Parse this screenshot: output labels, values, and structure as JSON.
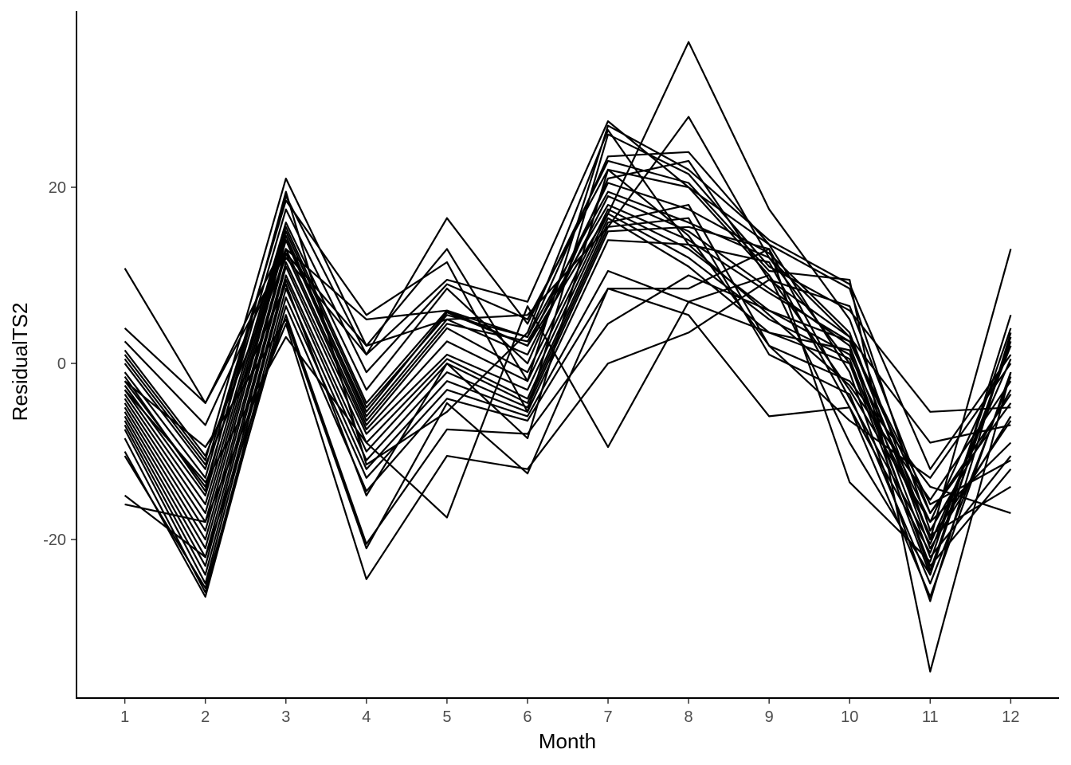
{
  "chart_data": {
    "type": "line",
    "title": "",
    "xlabel": "Month",
    "ylabel": "ResidualTS2",
    "x": [
      1,
      2,
      3,
      4,
      5,
      6,
      7,
      8,
      9,
      10,
      11,
      12
    ],
    "x_tick_labels": [
      "1",
      "2",
      "3",
      "4",
      "5",
      "6",
      "7",
      "8",
      "9",
      "10",
      "11",
      "12"
    ],
    "y_ticks": [
      20,
      0,
      -20
    ],
    "y_tick_labels": [
      "20",
      "0",
      "-20"
    ],
    "xlim": [
      0.4,
      12.6
    ],
    "ylim": [
      -38,
      40
    ],
    "grid": false,
    "legend": "none",
    "line_color": "#000000",
    "series": [
      {
        "values": [
          10.8,
          -4.5,
          14.0,
          -5.5,
          5.8,
          2.0,
          17.0,
          36.5,
          17.5,
          5.0,
          -20.0,
          13.0
        ]
      },
      {
        "values": [
          4.0,
          -4.5,
          12.5,
          2.0,
          5.0,
          5.5,
          15.5,
          28.0,
          12.0,
          0.0,
          -24.0,
          5.5
        ]
      },
      {
        "values": [
          2.5,
          -7.0,
          13.0,
          5.0,
          6.0,
          3.0,
          23.5,
          24.0,
          13.5,
          -1.0,
          -27.0,
          3.5
        ]
      },
      {
        "values": [
          1.5,
          -10.5,
          12.0,
          1.0,
          9.5,
          7.0,
          27.5,
          20.0,
          10.0,
          -3.0,
          -18.0,
          2.0
        ]
      },
      {
        "values": [
          1.0,
          -11.0,
          21.0,
          2.0,
          13.0,
          -2.0,
          27.0,
          22.0,
          14.0,
          9.0,
          -12.0,
          1.0
        ]
      },
      {
        "values": [
          0.0,
          -12.0,
          18.5,
          5.5,
          11.5,
          -5.5,
          26.0,
          21.5,
          11.0,
          6.0,
          -5.5,
          -5.0
        ]
      },
      {
        "values": [
          -1.0,
          -13.0,
          19.0,
          1.0,
          16.5,
          4.5,
          23.0,
          20.5,
          10.5,
          9.5,
          -35.0,
          -1.0
        ]
      },
      {
        "values": [
          -2.0,
          -14.0,
          17.5,
          -1.0,
          9.0,
          5.0,
          22.0,
          20.0,
          13.5,
          8.5,
          -19.0,
          -3.0
        ]
      },
      {
        "values": [
          -2.5,
          -15.0,
          16.0,
          -3.0,
          8.5,
          0.0,
          21.0,
          23.0,
          9.5,
          6.5,
          -17.0,
          -4.5
        ]
      },
      {
        "values": [
          -3.0,
          -16.0,
          15.5,
          -4.5,
          6.0,
          2.0,
          20.5,
          17.5,
          12.5,
          3.5,
          -21.0,
          -6.0
        ]
      },
      {
        "values": [
          -3.5,
          -17.0,
          15.0,
          -5.0,
          5.5,
          3.0,
          19.5,
          16.0,
          12.0,
          3.0,
          -9.0,
          -7.0
        ]
      },
      {
        "values": [
          -4.0,
          -18.0,
          14.5,
          -6.0,
          5.0,
          1.0,
          19.0,
          15.0,
          8.5,
          2.0,
          -22.0,
          -10.5
        ]
      },
      {
        "values": [
          -4.5,
          -19.0,
          14.0,
          -6.5,
          4.5,
          2.5,
          18.0,
          14.0,
          8.0,
          2.5,
          -16.0,
          -11.0
        ]
      },
      {
        "values": [
          -5.0,
          -20.0,
          13.0,
          -7.0,
          4.0,
          -1.0,
          17.5,
          13.0,
          6.0,
          1.0,
          -18.0,
          -9.0
        ]
      },
      {
        "values": [
          -5.5,
          -21.0,
          12.5,
          -7.5,
          2.5,
          -2.0,
          17.0,
          12.0,
          5.0,
          0.5,
          -23.0,
          -12.0
        ]
      },
      {
        "values": [
          -6.0,
          -22.0,
          11.5,
          -8.0,
          1.0,
          -3.0,
          16.5,
          11.0,
          3.5,
          0.0,
          -19.5,
          -14.0
        ]
      },
      {
        "values": [
          -6.5,
          -23.0,
          11.0,
          -9.0,
          0.5,
          -4.0,
          16.0,
          18.0,
          2.0,
          -2.0,
          -14.0,
          -17.0
        ]
      },
      {
        "values": [
          -7.0,
          -24.0,
          10.0,
          -10.0,
          0.0,
          -4.5,
          15.5,
          16.5,
          1.0,
          -3.5,
          -25.0,
          -1.5
        ]
      },
      {
        "values": [
          -7.5,
          -25.0,
          9.5,
          -11.0,
          -1.0,
          -5.0,
          15.0,
          15.5,
          13.0,
          -4.0,
          -20.5,
          0.5
        ]
      },
      {
        "values": [
          -8.5,
          -26.0,
          8.5,
          -12.0,
          -2.0,
          -5.5,
          14.0,
          13.5,
          11.5,
          -5.0,
          -21.5,
          2.0
        ]
      },
      {
        "values": [
          -10.0,
          -26.5,
          7.5,
          -13.0,
          -3.0,
          -6.0,
          10.5,
          7.0,
          10.0,
          -9.0,
          -24.0,
          3.0
        ]
      },
      {
        "values": [
          -10.5,
          -25.5,
          6.5,
          -14.5,
          -4.0,
          -6.5,
          8.5,
          8.5,
          13.0,
          -13.5,
          -22.5,
          4.0
        ]
      },
      {
        "values": [
          -15.0,
          -22.0,
          5.5,
          -20.5,
          -7.5,
          -8.0,
          4.5,
          10.0,
          6.0,
          2.5,
          -17.0,
          -3.5
        ]
      },
      {
        "values": [
          -16.0,
          -18.0,
          4.5,
          -24.5,
          -10.5,
          -12.0,
          0.0,
          3.5,
          9.5,
          3.0,
          -20.0,
          -6.5
        ]
      },
      {
        "values": [
          -3.0,
          -13.5,
          3.0,
          -9.0,
          -17.5,
          6.5,
          -9.5,
          7.0,
          3.5,
          1.5,
          -23.5,
          2.5
        ]
      },
      {
        "values": [
          -2.0,
          -9.5,
          5.0,
          -21.0,
          -4.5,
          -12.5,
          8.5,
          5.5,
          -6.0,
          -5.0,
          -26.5,
          -1.0
        ]
      },
      {
        "values": [
          0.5,
          -11.5,
          9.0,
          -15.0,
          0.0,
          -8.5,
          22.0,
          14.5,
          2.0,
          -6.5,
          -13.0,
          0.0
        ]
      },
      {
        "values": [
          -1.5,
          -14.5,
          19.5,
          -11.5,
          -5.5,
          3.5,
          26.5,
          13.5,
          5.5,
          -2.5,
          -15.5,
          -2.0
        ]
      }
    ]
  }
}
